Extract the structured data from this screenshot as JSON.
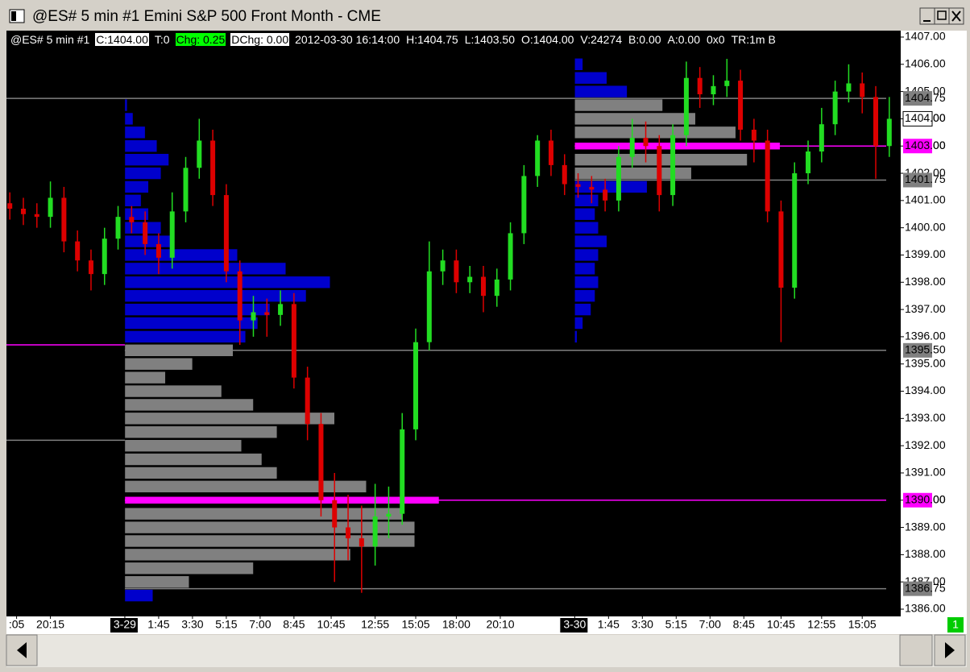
{
  "window": {
    "title": "@ES#  5 min   #1  Emini S&P 500 Front Month - CME",
    "page_number": "1"
  },
  "info_bar": [
    "@ES#  5 min   #1",
    "C:1404.00",
    "T:0",
    "Chg: 0.25",
    "DChg: 0.00",
    "2012-03-30 16:14:00",
    "H:1404.75",
    "L:1403.50",
    "O:1404.00",
    "V:24274",
    "B:0.00",
    "A:0.00",
    "0x0",
    "TR:1m B"
  ],
  "chart_data": {
    "type": "candlestick",
    "up_color": "#22dd22",
    "down_color": "#dd0000",
    "x": [
      1,
      5,
      9,
      13,
      17,
      21,
      25,
      29,
      33,
      37,
      41,
      45,
      49,
      53,
      57,
      61,
      65,
      69,
      73,
      77,
      81,
      85,
      89,
      93,
      97,
      101,
      105,
      109,
      113,
      117,
      121,
      125,
      129,
      133,
      137,
      141,
      145,
      149,
      153,
      157,
      161,
      165,
      169,
      173,
      177,
      181,
      185,
      189,
      193,
      197,
      201,
      205,
      209,
      213,
      217,
      221,
      225,
      229,
      233,
      237,
      241,
      245,
      249,
      253,
      257,
      261
    ],
    "open": [
      1400.9,
      1400.7,
      1400.5,
      1400.4,
      1401.1,
      1399.5,
      1398.8,
      1398.3,
      1399.6,
      1400.4,
      1400.2,
      1399.4,
      1398.9,
      1400.6,
      1402.2,
      1403.2,
      1401.2,
      1398.4,
      1396.6,
      1396.9,
      1396.8,
      1397.2,
      1394.5,
      1392.8,
      1390.0,
      1389.0,
      1388.6,
      1388.3,
      1389.4,
      1389.5,
      1392.6,
      1395.8,
      1398.4,
      1398.8,
      1398.0,
      1398.2,
      1397.5,
      1398.1,
      1399.8,
      1401.9,
      1403.2,
      1402.3,
      1401.6,
      1401.5,
      1401.4,
      1401.0,
      1402.6,
      1403.3,
      1403.0,
      1401.2,
      1403.4,
      1405.5,
      1404.9,
      1405.2,
      1405.4,
      1403.6,
      1403.2,
      1400.6,
      1397.8,
      1402.0,
      1402.8,
      1403.8,
      1405.0,
      1405.3,
      1404.8,
      1403.0
    ],
    "high": [
      1401.3,
      1401.1,
      1400.9,
      1401.7,
      1401.5,
      1399.9,
      1399.2,
      1400.0,
      1400.8,
      1400.8,
      1400.6,
      1399.8,
      1401.3,
      1402.6,
      1404.0,
      1403.6,
      1401.6,
      1398.8,
      1397.5,
      1397.4,
      1397.7,
      1397.6,
      1394.9,
      1393.2,
      1391.0,
      1390.2,
      1389.8,
      1390.6,
      1390.5,
      1393.2,
      1396.3,
      1399.5,
      1399.2,
      1399.2,
      1398.6,
      1398.6,
      1398.5,
      1400.2,
      1402.3,
      1403.4,
      1403.6,
      1402.7,
      1402.0,
      1401.9,
      1401.8,
      1403.0,
      1404.0,
      1403.9,
      1403.4,
      1403.8,
      1406.1,
      1405.9,
      1405.6,
      1406.2,
      1405.8,
      1404.0,
      1403.6,
      1401.0,
      1402.4,
      1403.2,
      1404.4,
      1405.4,
      1406.0,
      1405.7,
      1405.2,
      1404.8
    ],
    "low": [
      1400.3,
      1400.1,
      1400.0,
      1400.0,
      1399.1,
      1398.4,
      1397.7,
      1397.9,
      1399.2,
      1399.8,
      1399.0,
      1398.3,
      1398.5,
      1400.2,
      1401.8,
      1400.8,
      1398.0,
      1395.7,
      1396.0,
      1396.0,
      1396.4,
      1394.1,
      1392.2,
      1389.4,
      1387.0,
      1387.8,
      1386.6,
      1387.6,
      1388.6,
      1389.1,
      1392.2,
      1395.5,
      1397.9,
      1397.6,
      1397.6,
      1396.9,
      1397.1,
      1397.7,
      1399.4,
      1401.5,
      1401.9,
      1401.2,
      1401.1,
      1400.9,
      1400.6,
      1400.6,
      1402.2,
      1402.4,
      1400.6,
      1400.8,
      1403.0,
      1404.4,
      1404.5,
      1404.8,
      1403.2,
      1402.4,
      1400.2,
      1395.8,
      1397.4,
      1401.6,
      1402.4,
      1403.4,
      1404.6,
      1404.2,
      1401.8,
      1402.6
    ],
    "close": [
      1400.7,
      1400.5,
      1400.4,
      1401.1,
      1399.5,
      1398.8,
      1398.3,
      1399.6,
      1400.4,
      1400.2,
      1399.4,
      1398.9,
      1400.6,
      1402.2,
      1403.2,
      1401.2,
      1398.4,
      1396.6,
      1396.9,
      1396.8,
      1397.2,
      1394.5,
      1392.8,
      1390.0,
      1389.0,
      1388.6,
      1388.3,
      1389.4,
      1389.5,
      1392.6,
      1395.8,
      1398.4,
      1398.8,
      1398.0,
      1398.2,
      1397.5,
      1398.1,
      1399.8,
      1401.9,
      1403.2,
      1402.3,
      1401.6,
      1401.5,
      1401.4,
      1401.0,
      1402.6,
      1403.3,
      1403.0,
      1401.2,
      1403.4,
      1405.5,
      1404.9,
      1405.2,
      1405.4,
      1403.6,
      1403.2,
      1400.6,
      1397.8,
      1402.0,
      1402.8,
      1403.8,
      1405.0,
      1405.3,
      1404.8,
      1403.0,
      1404.0
    ],
    "xlim": [
      0,
      262
    ],
    "ylim": [
      1385.7,
      1407.2
    ],
    "xticks": [
      {
        "value": 3,
        "label": ":05"
      },
      {
        "value": 13,
        "label": "20:15"
      },
      {
        "value": 35,
        "label": "3-29",
        "boxed": true
      },
      {
        "value": 45,
        "label": "1:45"
      },
      {
        "value": 55,
        "label": "3:30"
      },
      {
        "value": 65,
        "label": "5:15"
      },
      {
        "value": 75,
        "label": "7:00"
      },
      {
        "value": 85,
        "label": "8:45"
      },
      {
        "value": 96,
        "label": "10:45"
      },
      {
        "value": 109,
        "label": "12:55"
      },
      {
        "value": 121,
        "label": "15:05"
      },
      {
        "value": 133,
        "label": "18:00"
      },
      {
        "value": 146,
        "label": "20:10"
      },
      {
        "value": 168,
        "label": "3-30",
        "boxed": true
      },
      {
        "value": 178,
        "label": "1:45"
      },
      {
        "value": 188,
        "label": "3:30"
      },
      {
        "value": 198,
        "label": "5:15"
      },
      {
        "value": 208,
        "label": "7:00"
      },
      {
        "value": 218,
        "label": "8:45"
      },
      {
        "value": 229,
        "label": "10:45"
      },
      {
        "value": 241,
        "label": "12:55"
      },
      {
        "value": 253,
        "label": "15:05"
      }
    ],
    "yticks": [
      {
        "value": 1407,
        "label": "1407.00"
      },
      {
        "value": 1406,
        "label": "1406.00"
      },
      {
        "value": 1405,
        "label": "1405.00"
      },
      {
        "value": 1404,
        "label": "1404.00"
      },
      {
        "value": 1403,
        "label": "1403.00"
      },
      {
        "value": 1402,
        "label": "1402.00"
      },
      {
        "value": 1401,
        "label": "1401.00"
      },
      {
        "value": 1400,
        "label": "1400.00"
      },
      {
        "value": 1399,
        "label": "1399.00"
      },
      {
        "value": 1398,
        "label": "1398.00"
      },
      {
        "value": 1397,
        "label": "1397.00"
      },
      {
        "value": 1396,
        "label": "1396.00"
      },
      {
        "value": 1395,
        "label": "1395.00"
      },
      {
        "value": 1394,
        "label": "1394.00"
      },
      {
        "value": 1393,
        "label": "1393.00"
      },
      {
        "value": 1392,
        "label": "1392.00"
      },
      {
        "value": 1391,
        "label": "1391.00"
      },
      {
        "value": 1390,
        "label": "1390.00"
      },
      {
        "value": 1389,
        "label": "1389.00"
      },
      {
        "value": 1388,
        "label": "1388.00"
      },
      {
        "value": 1387,
        "label": "1387.00"
      },
      {
        "value": 1386,
        "label": "1386.00"
      }
    ],
    "levels": [
      {
        "value": 1404.75,
        "label": "1404.75",
        "color": "#808080",
        "x_start": 0
      },
      {
        "value": 1403,
        "label": "1403.00",
        "color": "#ff00ff",
        "x_start": 168
      },
      {
        "value": 1401.75,
        "label": "1401.75",
        "color": "#808080",
        "x_start": 168
      },
      {
        "value": 1395.5,
        "label": "1395.50",
        "color": "#808080",
        "x_start": 35
      },
      {
        "value": 1390,
        "label": "1390.00",
        "color": "#ff00ff",
        "x_start": 35
      },
      {
        "value": 1386.75,
        "label": "1386.75",
        "color": "#808080",
        "x_start": 35
      }
    ],
    "segments": [
      {
        "value": 1395.7,
        "color": "#ff00ff",
        "x_start": 0,
        "x_end": 35
      },
      {
        "value": 1392.2,
        "color": "#808080",
        "x_start": 0,
        "x_end": 35
      }
    ],
    "last_price": {
      "value": 1404,
      "label": "1404.00"
    },
    "profiles": [
      {
        "x_start": 35,
        "levels": [
          1404.5,
          1404.0,
          1403.5,
          1403.0,
          1402.5,
          1402.0,
          1401.5,
          1401.0,
          1400.5,
          1400.0,
          1399.5,
          1399.0,
          1398.5,
          1398.0,
          1397.5,
          1397.0,
          1396.5,
          1396.0,
          1395.5,
          1395.0,
          1394.5,
          1394.0,
          1393.5,
          1393.0,
          1392.5,
          1392.0,
          1391.5,
          1391.0,
          1390.5,
          1390.0,
          1389.5,
          1389.0,
          1388.5,
          1388.0,
          1387.5,
          1387.0,
          1386.5
        ],
        "widths": [
          0.7,
          2.4,
          6,
          9.5,
          13,
          10.7,
          7,
          4.8,
          7,
          10.7,
          14.3,
          33.3,
          47.6,
          60.7,
          53.6,
          42.9,
          39.3,
          35.7,
          32,
          20,
          12,
          28.6,
          38,
          62,
          45,
          34.5,
          40.5,
          45,
          71.4,
          92.9,
          82,
          85.7,
          85.7,
          66.7,
          38,
          19,
          8.3
        ],
        "colors": [
          "#0000cc",
          "#0000cc",
          "#0000cc",
          "#0000cc",
          "#0000cc",
          "#0000cc",
          "#0000cc",
          "#0000cc",
          "#0000cc",
          "#0000cc",
          "#0000cc",
          "#0000cc",
          "#0000cc",
          "#0000cc",
          "#0000cc",
          "#0000cc",
          "#0000cc",
          "#0000cc",
          "#808080",
          "#808080",
          "#808080",
          "#808080",
          "#808080",
          "#808080",
          "#808080",
          "#808080",
          "#808080",
          "#808080",
          "#808080",
          "#ff00ff",
          "#808080",
          "#808080",
          "#808080",
          "#808080",
          "#808080",
          "#808080",
          "#0000cc"
        ]
      },
      {
        "x_start": 168,
        "levels": [
          1406.0,
          1405.5,
          1405.0,
          1404.5,
          1404.0,
          1403.5,
          1403.0,
          1402.5,
          1402.0,
          1401.5,
          1401.0,
          1400.5,
          1400.0,
          1399.5,
          1399.0,
          1398.5,
          1398.0,
          1397.5,
          1397.0,
          1396.5,
          1396.0
        ],
        "widths": [
          2.4,
          9.5,
          15.5,
          26,
          35.7,
          47.6,
          60.7,
          51,
          34.5,
          21.4,
          7,
          6,
          7,
          9.5,
          7,
          6,
          7,
          6,
          4.8,
          2.4,
          0.7
        ],
        "colors": [
          "#0000cc",
          "#0000cc",
          "#0000cc",
          "#808080",
          "#808080",
          "#808080",
          "#ff00ff",
          "#808080",
          "#808080",
          "#0000cc",
          "#0000cc",
          "#0000cc",
          "#0000cc",
          "#0000cc",
          "#0000cc",
          "#0000cc",
          "#0000cc",
          "#0000cc",
          "#0000cc",
          "#0000cc",
          "#0000cc"
        ]
      }
    ]
  }
}
